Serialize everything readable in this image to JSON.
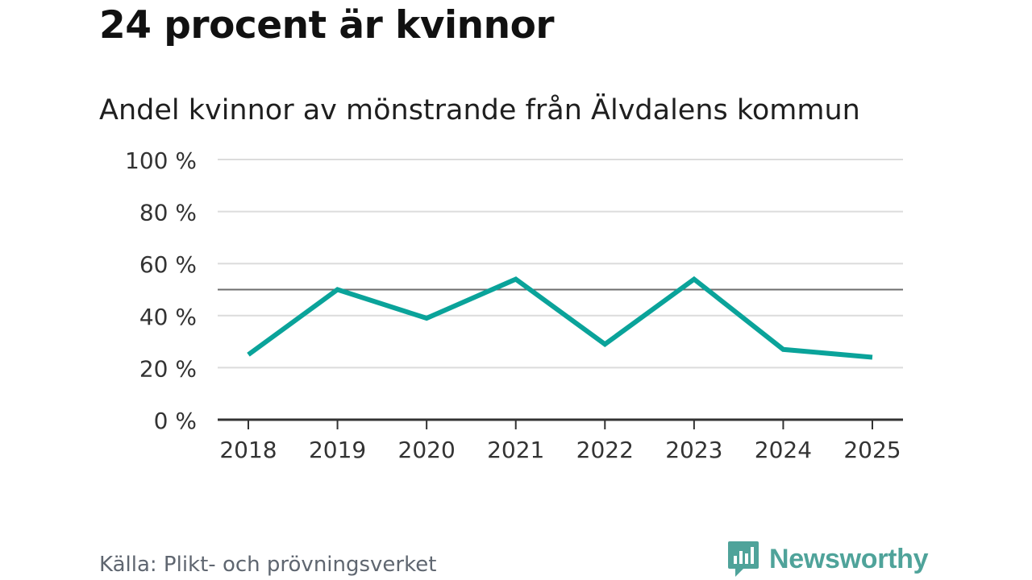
{
  "header": {
    "title": "24 procent är kvinnor",
    "subtitle": "Andel kvinnor av mönstrande från Älvdalens kommun"
  },
  "footer": {
    "source": "Källa: Plikt- och prövningsverket",
    "brand": "Newsworthy",
    "brand_color": "#4fa39a"
  },
  "chart_data": {
    "type": "line",
    "title": "Andel kvinnor av mönstrande från Älvdalens kommun",
    "xlabel": "",
    "ylabel": "",
    "categories": [
      "2018",
      "2019",
      "2020",
      "2021",
      "2022",
      "2023",
      "2024",
      "2025"
    ],
    "series": [
      {
        "values": [
          25,
          50,
          39,
          54,
          29,
          54,
          27,
          24
        ],
        "color": "#0aa39a"
      }
    ],
    "ylim": [
      0,
      100
    ],
    "yticks": [
      0,
      20,
      40,
      60,
      80,
      100
    ],
    "ytick_labels": [
      "0 %",
      "20 %",
      "40 %",
      "60 %",
      "80 %",
      "100 %"
    ],
    "reference_line": 50,
    "grid": true,
    "legend": "none"
  }
}
